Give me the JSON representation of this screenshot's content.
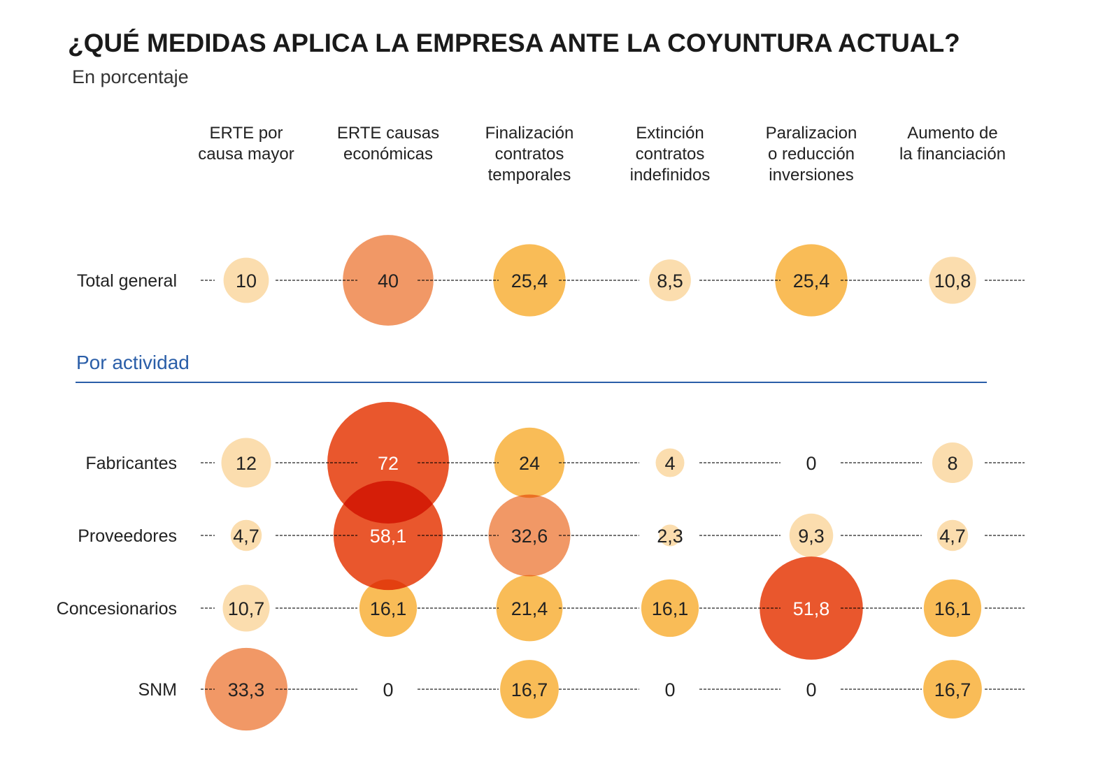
{
  "chart_data": {
    "type": "bubble-matrix",
    "title": "¿QUÉ MEDIDAS APLICA LA EMPRESA ANTE LA COYUNTURA ACTUAL?",
    "subtitle": "En porcentaje",
    "section_label": "Por actividad",
    "columns": [
      [
        "ERTE por",
        "causa mayor"
      ],
      [
        "ERTE causas",
        "económicas"
      ],
      [
        "Finalización",
        "contratos",
        "temporales"
      ],
      [
        "Extinción",
        "contratos",
        "indefinidos"
      ],
      [
        "Paralizacion",
        "o reducción",
        "inversiones"
      ],
      [
        "Aumento de",
        "la financiación"
      ]
    ],
    "rows": [
      {
        "label": "Total general",
        "values": [
          10,
          40,
          25.4,
          8.5,
          25.4,
          10.8
        ],
        "labels": [
          "10",
          "40",
          "25,4",
          "8,5",
          "25,4",
          "10,8"
        ]
      },
      {
        "label": "Fabricantes",
        "values": [
          12,
          72,
          24,
          4,
          0,
          8
        ],
        "labels": [
          "12",
          "72",
          "24",
          "4",
          "0",
          "8"
        ]
      },
      {
        "label": "Proveedores",
        "values": [
          4.7,
          58.1,
          32.6,
          2.3,
          9.3,
          4.7
        ],
        "labels": [
          "4,7",
          "58,1",
          "32,6",
          "2,3",
          "9,3",
          "4,7"
        ]
      },
      {
        "label": "Concesionarios",
        "values": [
          10.7,
          16.1,
          21.4,
          16.1,
          51.8,
          16.1
        ],
        "labels": [
          "10,7",
          "16,1",
          "21,4",
          "16,1",
          "51,8",
          "16,1"
        ]
      },
      {
        "label": "SNM",
        "values": [
          33.3,
          0,
          16.7,
          0,
          0,
          16.7
        ],
        "labels": [
          "33,3",
          "0",
          "16,7",
          "0",
          "0",
          "16,7"
        ]
      }
    ],
    "color_scale": [
      {
        "max": 15,
        "color": "#FBDDAE"
      },
      {
        "max": 30,
        "color": "#F9BC57"
      },
      {
        "max": 50,
        "color": "#F19866"
      },
      {
        "max": 100,
        "color": "#E84E22"
      }
    ],
    "section_color": "#2A5EA8"
  }
}
